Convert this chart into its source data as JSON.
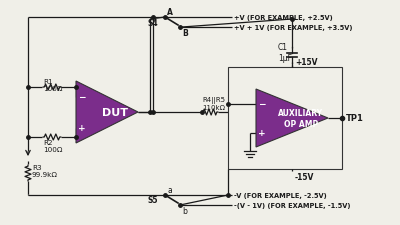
{
  "bg_color": "#f0efe8",
  "op_amp_color": "#7B2D8B",
  "line_color": "#1a1a1a",
  "text_color": "#1a1a1a",
  "fig_width": 4.0,
  "fig_height": 2.26,
  "dpi": 100,
  "labels": {
    "R1": "R1\n100Ω",
    "R2": "R2\n100Ω",
    "R3": "R3\n99.9kΩ",
    "R4R5": "R4||R5\n110kΩ",
    "C1": "C1\n1μF",
    "DUT": "DUT",
    "AUX": "AUXILIARY\nOP AMP",
    "S4": "S4",
    "S5": "S5",
    "A": "A",
    "B": "B",
    "a": "a",
    "b": "b",
    "TP1": "TP1",
    "plus15": "+15V",
    "minus15": "-15V",
    "top_right1": "+V (FOR EXAMPLE, +2.5V)",
    "top_right2": "+V + 1V (FOR EXAMPLE, +3.5V)",
    "bot_right1": "-V (FOR EXAMPLE, -2.5V)",
    "bot_right2": "-(V - 1V) (FOR EXAMPLE, -1.5V)"
  }
}
